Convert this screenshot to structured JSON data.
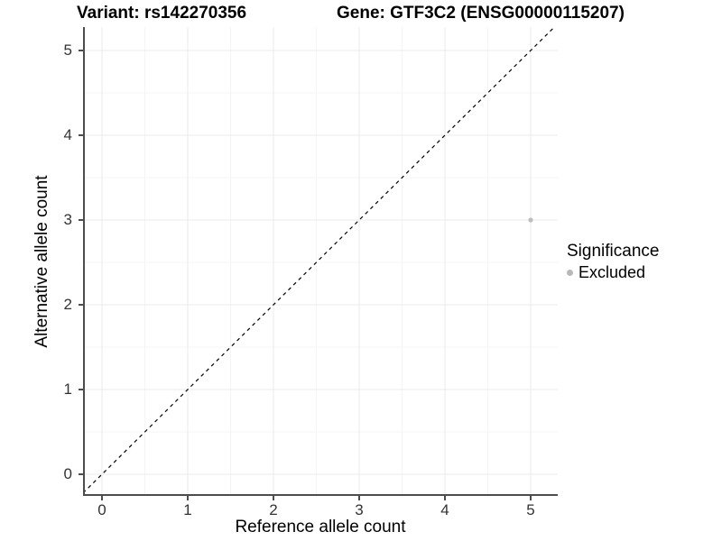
{
  "titles": {
    "variant": "Variant: rs142270356",
    "gene": "Gene: GTF3C2 (ENSG00000115207)"
  },
  "chart_data": {
    "type": "scatter",
    "title_left": "Variant: rs142270356",
    "title_right": "Gene: GTF3C2 (ENSG00000115207)",
    "xlabel": "Reference allele count",
    "ylabel": "Alternative allele count",
    "x_ticks": [
      0,
      1,
      2,
      3,
      4,
      5
    ],
    "y_ticks": [
      0,
      1,
      2,
      3,
      4,
      5
    ],
    "xlim": [
      -0.25,
      5.3
    ],
    "ylim": [
      -0.26,
      5.28
    ],
    "grid": "major and minor gridlines on",
    "points": [
      {
        "x": 5,
        "y": 3,
        "significance": "Excluded",
        "color": "#bdbdbd"
      }
    ],
    "reference_line": {
      "type": "identity",
      "slope": 1,
      "intercept": 0,
      "style": "dashed",
      "color": "#000000"
    },
    "legend": {
      "title": "Significance",
      "position": "right",
      "items": [
        {
          "label": "Excluded",
          "color": "#b8b8b8"
        }
      ]
    },
    "style": {
      "panel_background": "#ffffff",
      "grid_major_color": "#ebebeb",
      "grid_minor_color": "#f5f5f5",
      "axis_line_color": "#4d4d4d",
      "tick_label_color": "#333333"
    }
  }
}
